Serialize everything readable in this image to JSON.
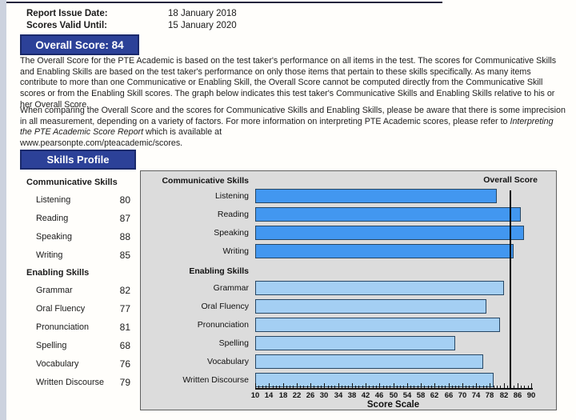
{
  "header": {
    "report_issue_date_label": "Report Issue Date:",
    "report_issue_date": "18 January 2018",
    "scores_valid_until_label": "Scores Valid Until:",
    "scores_valid_until": "15 January 2020",
    "overall_score_box": "Overall Score: 84"
  },
  "paragraphs": {
    "p1": "The Overall Score for the PTE Academic is based on the test taker's performance on all items in the test.  The scores for Communicative Skills and Enabling Skills are based on the test taker's performance on only those items that pertain to these skills specifically.  As many items contribute to more than one Communicative or Enabling Skill, the Overall Score cannot be computed directly from the Communicative Skill scores or from the Enabling Skill scores.  The graph below indicates this test taker's Communicative Skills and Enabling Skills relative to his or her Overall Score.",
    "p2_before_italic": "When comparing the Overall Score and the scores for Communicative Skills and Enabling Skills, please be aware that there is some imprecision in all measurement, depending on a variety of factors.  For more information on interpreting PTE Academic scores, please refer to ",
    "p2_italic": "Interpreting the PTE Academic Score Report",
    "p2_after_italic": " which is available at",
    "p2_url": "www.pearsonpte.com/pteacademic/scores."
  },
  "skills_profile": {
    "title": "Skills Profile"
  },
  "chart_data": {
    "type": "bar",
    "orientation": "horizontal",
    "title": "",
    "xlabel": "Score Scale",
    "xlim": [
      10,
      90
    ],
    "x_ticks": [
      10,
      14,
      18,
      22,
      26,
      30,
      34,
      38,
      42,
      46,
      50,
      54,
      58,
      62,
      66,
      70,
      74,
      78,
      82,
      86,
      90
    ],
    "minor_tick_step": 1,
    "overall_score": 84,
    "overall_score_label": "Overall Score",
    "legend_position": "none",
    "grid": false,
    "groups": [
      {
        "name": "Communicative Skills",
        "bar_color": "#4297f0",
        "skills": [
          {
            "name": "Listening",
            "score": 80
          },
          {
            "name": "Reading",
            "score": 87
          },
          {
            "name": "Speaking",
            "score": 88
          },
          {
            "name": "Writing",
            "score": 85
          }
        ]
      },
      {
        "name": "Enabling Skills",
        "bar_color": "#a4cff3",
        "skills": [
          {
            "name": "Grammar",
            "score": 82
          },
          {
            "name": "Oral Fluency",
            "score": 77
          },
          {
            "name": "Pronunciation",
            "score": 81
          },
          {
            "name": "Spelling",
            "score": 68
          },
          {
            "name": "Vocabulary",
            "score": 76
          },
          {
            "name": "Written Discourse",
            "score": 79
          }
        ]
      }
    ],
    "colors": {
      "accent_navy": "#2c4198",
      "navy_border": "#1b2a6b",
      "panel_bg": "#dcdcdc"
    }
  }
}
